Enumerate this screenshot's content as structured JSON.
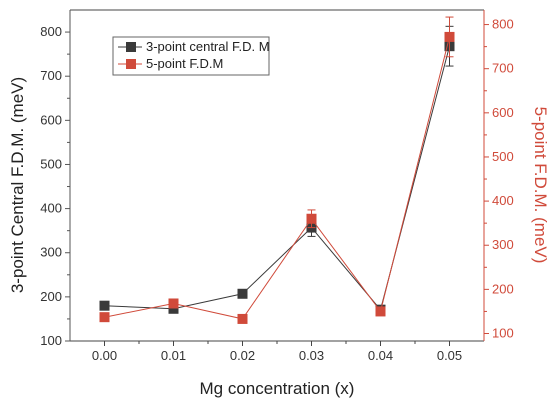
{
  "chart_data": {
    "type": "line",
    "xlabel": "Mg concentration (x)",
    "ylabel_left": "3-point Central F.D.M. (meV)",
    "ylabel_right": "5-point F.D.M. (meV)",
    "x": [
      0.0,
      0.01,
      0.02,
      0.03,
      0.04,
      0.05
    ],
    "x_tick_labels": [
      "0.00",
      "0.01",
      "0.02",
      "0.03",
      "0.04",
      "0.05"
    ],
    "xlim": [
      -0.005,
      0.055
    ],
    "ylim_left": [
      100,
      850
    ],
    "ylim_right": [
      83,
      833
    ],
    "y_ticks_left": [
      100,
      200,
      300,
      400,
      500,
      600,
      700,
      800
    ],
    "y_ticks_right": [
      100,
      200,
      300,
      400,
      500,
      600,
      700,
      800
    ],
    "legend_position": "top-left",
    "grid": false,
    "series": [
      {
        "name": "3-point central F.D. M",
        "axis": "left",
        "color": "#3a3a3a",
        "values": [
          180,
          173,
          207,
          357,
          171,
          768
        ],
        "errors": [
          0,
          0,
          0,
          20,
          0,
          45
        ]
      },
      {
        "name": "5-point F.D.M",
        "axis": "right",
        "color": "#d04a3a",
        "values": [
          137,
          168,
          133,
          360,
          150,
          772
        ],
        "errors": [
          0,
          0,
          0,
          20,
          0,
          45
        ]
      }
    ]
  }
}
